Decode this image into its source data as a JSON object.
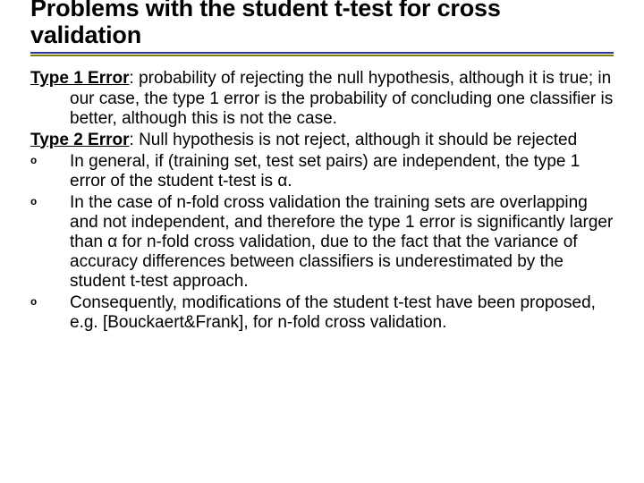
{
  "title": "Problems with the student t-test for cross validation",
  "colors": {
    "rule_top": "#333399",
    "rule_bottom": "#808000",
    "text": "#000000",
    "background": "#ffffff"
  },
  "typography": {
    "title_fontsize": 27,
    "body_fontsize": 19,
    "title_weight": 700
  },
  "defs": [
    {
      "term": "Type 1 Error",
      "text": ": probability of rejecting the null hypothesis, although it is true; in our case, the type 1 error is the probability of concluding one classifier is better, although this is not the case."
    },
    {
      "term": "Type 2 Error",
      "text": ": Null hypothesis is not reject, although it should be rejected"
    }
  ],
  "bullets": [
    "In general, if (training set, test set pairs) are independent, the type 1 error of the student t-test is α.",
    "In the case of n-fold cross validation the training sets are overlapping and not independent, and therefore the type 1 error is significantly larger than α for n-fold cross validation, due to the fact that the variance of accuracy differences between classifiers is underestimated by the student t-test approach.",
    "Consequently, modifications of the student t-test have been proposed, e.g. [Bouckaert&Frank], for n-fold cross validation."
  ],
  "bullet_marker": "o"
}
